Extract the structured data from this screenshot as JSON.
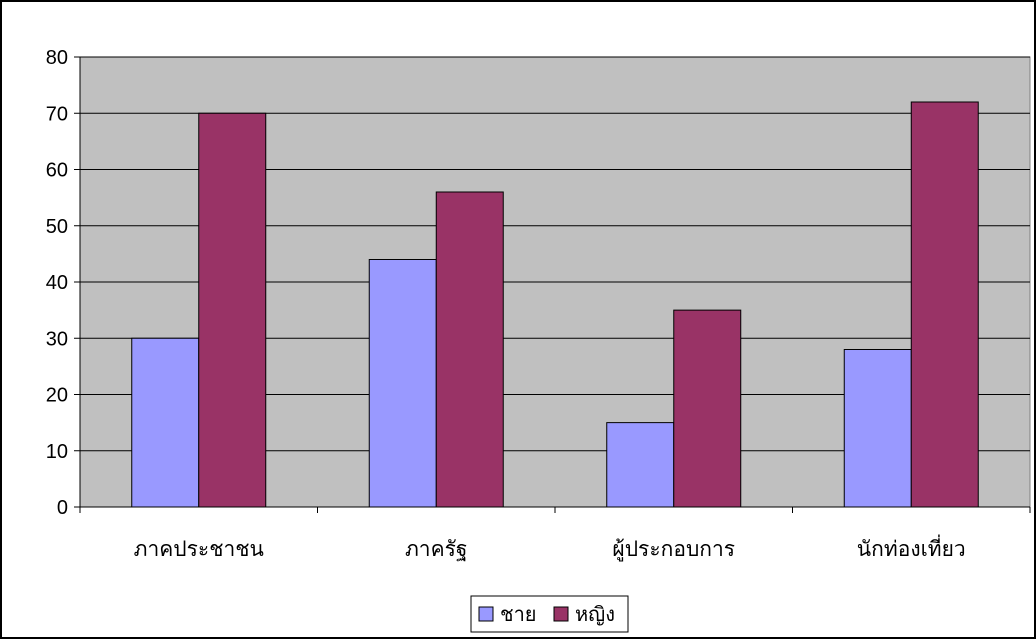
{
  "chart_data": {
    "type": "bar",
    "categories": [
      "ภาคประชาชน",
      "ภาครัฐ",
      "ผู้ประกอบการ",
      "นักท่องเที่ยว"
    ],
    "series": [
      {
        "name": "ชาย",
        "values": [
          30,
          44,
          15,
          28
        ],
        "color": "#9999ff"
      },
      {
        "name": "หญิง",
        "values": [
          70,
          56,
          35,
          72
        ],
        "color": "#993366"
      }
    ],
    "yticks": [
      "0",
      "10",
      "20",
      "30",
      "40",
      "50",
      "60",
      "70",
      "80"
    ],
    "ylim": [
      0,
      80
    ],
    "grid": true,
    "legend_position": "bottom",
    "plot_background": "#c0c0c0"
  }
}
